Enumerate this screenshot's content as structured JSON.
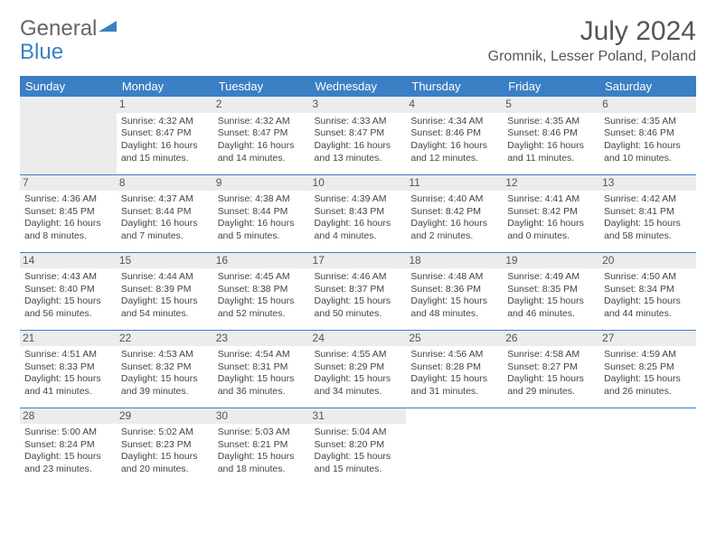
{
  "branding": {
    "text1": "General",
    "text2": "Blue"
  },
  "header": {
    "month_year": "July 2024",
    "location": "Gromnik, Lesser Poland, Poland"
  },
  "colors": {
    "header_bg": "#3b7fc4",
    "header_text": "#ffffff",
    "day_strip_bg": "#ececec",
    "border": "#3b7fc4",
    "body_text": "#444444",
    "title_text": "#555555"
  },
  "daysOfWeek": [
    "Sunday",
    "Monday",
    "Tuesday",
    "Wednesday",
    "Thursday",
    "Friday",
    "Saturday"
  ],
  "weeks": [
    [
      null,
      {
        "n": "1",
        "sr": "Sunrise: 4:32 AM",
        "ss": "Sunset: 8:47 PM",
        "dl": "Daylight: 16 hours and 15 minutes."
      },
      {
        "n": "2",
        "sr": "Sunrise: 4:32 AM",
        "ss": "Sunset: 8:47 PM",
        "dl": "Daylight: 16 hours and 14 minutes."
      },
      {
        "n": "3",
        "sr": "Sunrise: 4:33 AM",
        "ss": "Sunset: 8:47 PM",
        "dl": "Daylight: 16 hours and 13 minutes."
      },
      {
        "n": "4",
        "sr": "Sunrise: 4:34 AM",
        "ss": "Sunset: 8:46 PM",
        "dl": "Daylight: 16 hours and 12 minutes."
      },
      {
        "n": "5",
        "sr": "Sunrise: 4:35 AM",
        "ss": "Sunset: 8:46 PM",
        "dl": "Daylight: 16 hours and 11 minutes."
      },
      {
        "n": "6",
        "sr": "Sunrise: 4:35 AM",
        "ss": "Sunset: 8:46 PM",
        "dl": "Daylight: 16 hours and 10 minutes."
      }
    ],
    [
      {
        "n": "7",
        "sr": "Sunrise: 4:36 AM",
        "ss": "Sunset: 8:45 PM",
        "dl": "Daylight: 16 hours and 8 minutes."
      },
      {
        "n": "8",
        "sr": "Sunrise: 4:37 AM",
        "ss": "Sunset: 8:44 PM",
        "dl": "Daylight: 16 hours and 7 minutes."
      },
      {
        "n": "9",
        "sr": "Sunrise: 4:38 AM",
        "ss": "Sunset: 8:44 PM",
        "dl": "Daylight: 16 hours and 5 minutes."
      },
      {
        "n": "10",
        "sr": "Sunrise: 4:39 AM",
        "ss": "Sunset: 8:43 PM",
        "dl": "Daylight: 16 hours and 4 minutes."
      },
      {
        "n": "11",
        "sr": "Sunrise: 4:40 AM",
        "ss": "Sunset: 8:42 PM",
        "dl": "Daylight: 16 hours and 2 minutes."
      },
      {
        "n": "12",
        "sr": "Sunrise: 4:41 AM",
        "ss": "Sunset: 8:42 PM",
        "dl": "Daylight: 16 hours and 0 minutes."
      },
      {
        "n": "13",
        "sr": "Sunrise: 4:42 AM",
        "ss": "Sunset: 8:41 PM",
        "dl": "Daylight: 15 hours and 58 minutes."
      }
    ],
    [
      {
        "n": "14",
        "sr": "Sunrise: 4:43 AM",
        "ss": "Sunset: 8:40 PM",
        "dl": "Daylight: 15 hours and 56 minutes."
      },
      {
        "n": "15",
        "sr": "Sunrise: 4:44 AM",
        "ss": "Sunset: 8:39 PM",
        "dl": "Daylight: 15 hours and 54 minutes."
      },
      {
        "n": "16",
        "sr": "Sunrise: 4:45 AM",
        "ss": "Sunset: 8:38 PM",
        "dl": "Daylight: 15 hours and 52 minutes."
      },
      {
        "n": "17",
        "sr": "Sunrise: 4:46 AM",
        "ss": "Sunset: 8:37 PM",
        "dl": "Daylight: 15 hours and 50 minutes."
      },
      {
        "n": "18",
        "sr": "Sunrise: 4:48 AM",
        "ss": "Sunset: 8:36 PM",
        "dl": "Daylight: 15 hours and 48 minutes."
      },
      {
        "n": "19",
        "sr": "Sunrise: 4:49 AM",
        "ss": "Sunset: 8:35 PM",
        "dl": "Daylight: 15 hours and 46 minutes."
      },
      {
        "n": "20",
        "sr": "Sunrise: 4:50 AM",
        "ss": "Sunset: 8:34 PM",
        "dl": "Daylight: 15 hours and 44 minutes."
      }
    ],
    [
      {
        "n": "21",
        "sr": "Sunrise: 4:51 AM",
        "ss": "Sunset: 8:33 PM",
        "dl": "Daylight: 15 hours and 41 minutes."
      },
      {
        "n": "22",
        "sr": "Sunrise: 4:53 AM",
        "ss": "Sunset: 8:32 PM",
        "dl": "Daylight: 15 hours and 39 minutes."
      },
      {
        "n": "23",
        "sr": "Sunrise: 4:54 AM",
        "ss": "Sunset: 8:31 PM",
        "dl": "Daylight: 15 hours and 36 minutes."
      },
      {
        "n": "24",
        "sr": "Sunrise: 4:55 AM",
        "ss": "Sunset: 8:29 PM",
        "dl": "Daylight: 15 hours and 34 minutes."
      },
      {
        "n": "25",
        "sr": "Sunrise: 4:56 AM",
        "ss": "Sunset: 8:28 PM",
        "dl": "Daylight: 15 hours and 31 minutes."
      },
      {
        "n": "26",
        "sr": "Sunrise: 4:58 AM",
        "ss": "Sunset: 8:27 PM",
        "dl": "Daylight: 15 hours and 29 minutes."
      },
      {
        "n": "27",
        "sr": "Sunrise: 4:59 AM",
        "ss": "Sunset: 8:25 PM",
        "dl": "Daylight: 15 hours and 26 minutes."
      }
    ],
    [
      {
        "n": "28",
        "sr": "Sunrise: 5:00 AM",
        "ss": "Sunset: 8:24 PM",
        "dl": "Daylight: 15 hours and 23 minutes."
      },
      {
        "n": "29",
        "sr": "Sunrise: 5:02 AM",
        "ss": "Sunset: 8:23 PM",
        "dl": "Daylight: 15 hours and 20 minutes."
      },
      {
        "n": "30",
        "sr": "Sunrise: 5:03 AM",
        "ss": "Sunset: 8:21 PM",
        "dl": "Daylight: 15 hours and 18 minutes."
      },
      {
        "n": "31",
        "sr": "Sunrise: 5:04 AM",
        "ss": "Sunset: 8:20 PM",
        "dl": "Daylight: 15 hours and 15 minutes."
      },
      null,
      null,
      null
    ]
  ]
}
